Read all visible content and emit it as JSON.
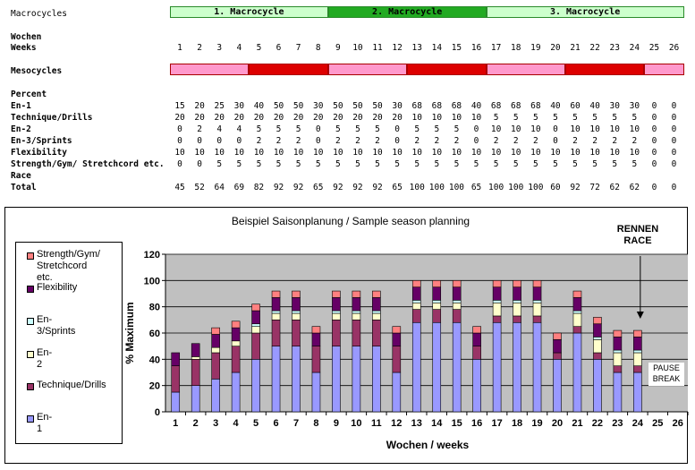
{
  "header_labels": {
    "macrocycles": "Macrocycles",
    "wochen": "Wochen",
    "weeks": "Weeks",
    "mesocycles": "Mesocycles",
    "percent": "Percent"
  },
  "macrocycles": [
    {
      "label": "1. Macrocycle",
      "start_week": 1,
      "end_week": 8,
      "color": "#ccffcc"
    },
    {
      "label": "2. Macrocycle",
      "start_week": 9,
      "end_week": 16,
      "color": "#22aa22"
    },
    {
      "label": "3. Macrocycle",
      "start_week": 17,
      "end_week": 26,
      "color": "#ccffcc"
    }
  ],
  "mesocycles": [
    {
      "start_week": 1,
      "end_week": 4,
      "color": "#ff99cc"
    },
    {
      "start_week": 5,
      "end_week": 8,
      "color": "#dd0000"
    },
    {
      "start_week": 9,
      "end_week": 12,
      "color": "#ff99cc"
    },
    {
      "start_week": 13,
      "end_week": 16,
      "color": "#dd0000"
    },
    {
      "start_week": 17,
      "end_week": 20,
      "color": "#ff99cc"
    },
    {
      "start_week": 21,
      "end_week": 24,
      "color": "#dd0000"
    },
    {
      "start_week": 25,
      "end_week": 26,
      "color": "#ff99cc"
    }
  ],
  "weeks": [
    "1",
    "2",
    "3",
    "4",
    "5",
    "6",
    "7",
    "8",
    "9",
    "10",
    "11",
    "12",
    "13",
    "14",
    "15",
    "16",
    "17",
    "18",
    "19",
    "20",
    "21",
    "22",
    "23",
    "24",
    "25",
    "26"
  ],
  "table_rows": [
    {
      "label": "En-1",
      "values": [
        "15",
        "20",
        "25",
        "30",
        "40",
        "50",
        "50",
        "30",
        "50",
        "50",
        "50",
        "30",
        "68",
        "68",
        "68",
        "40",
        "68",
        "68",
        "68",
        "40",
        "60",
        "40",
        "30",
        "30",
        "0",
        "0"
      ]
    },
    {
      "label": "Technique/Drills",
      "values": [
        "20",
        "20",
        "20",
        "20",
        "20",
        "20",
        "20",
        "20",
        "20",
        "20",
        "20",
        "20",
        "10",
        "10",
        "10",
        "10",
        "5",
        "5",
        "5",
        "5",
        "5",
        "5",
        "5",
        "5",
        "0",
        "0"
      ]
    },
    {
      "label": "En-2",
      "values": [
        "0",
        "2",
        "4",
        "4",
        "5",
        "5",
        "5",
        "0",
        "5",
        "5",
        "5",
        "0",
        "5",
        "5",
        "5",
        "0",
        "10",
        "10",
        "10",
        "0",
        "10",
        "10",
        "10",
        "10",
        "0",
        "0"
      ]
    },
    {
      "label": "En-3/Sprints",
      "values": [
        "0",
        "0",
        "0",
        "0",
        "2",
        "2",
        "2",
        "0",
        "2",
        "2",
        "2",
        "0",
        "2",
        "2",
        "2",
        "0",
        "2",
        "2",
        "2",
        "0",
        "2",
        "2",
        "2",
        "2",
        "0",
        "0"
      ]
    },
    {
      "label": "Flexibility",
      "values": [
        "10",
        "10",
        "10",
        "10",
        "10",
        "10",
        "10",
        "10",
        "10",
        "10",
        "10",
        "10",
        "10",
        "10",
        "10",
        "10",
        "10",
        "10",
        "10",
        "10",
        "10",
        "10",
        "10",
        "10",
        "0",
        "0"
      ]
    },
    {
      "label": "Strength/Gym/ Stretchcord etc.",
      "values": [
        "0",
        "0",
        "5",
        "5",
        "5",
        "5",
        "5",
        "5",
        "5",
        "5",
        "5",
        "5",
        "5",
        "5",
        "5",
        "5",
        "5",
        "5",
        "5",
        "5",
        "5",
        "5",
        "5",
        "5",
        "0",
        "0"
      ]
    },
    {
      "label": "Race",
      "values": []
    },
    {
      "label": "Total",
      "values": [
        "45",
        "52",
        "64",
        "69",
        "82",
        "92",
        "92",
        "65",
        "92",
        "92",
        "92",
        "65",
        "100",
        "100",
        "100",
        "65",
        "100",
        "100",
        "100",
        "60",
        "92",
        "72",
        "62",
        "62",
        "0",
        "0"
      ]
    }
  ],
  "chart_data": {
    "type": "bar",
    "stacked": true,
    "title": "Beispiel Saisonplanung / Sample season planning",
    "xlabel": "Wochen / weeks",
    "ylabel": "% Maximum",
    "ylim": [
      0,
      120
    ],
    "yticks": [
      "0",
      "20",
      "40",
      "60",
      "80",
      "100",
      "120"
    ],
    "grid": true,
    "legend_position": "left",
    "categories": [
      "1",
      "2",
      "3",
      "4",
      "5",
      "6",
      "7",
      "8",
      "9",
      "10",
      "11",
      "12",
      "13",
      "14",
      "15",
      "16",
      "17",
      "18",
      "19",
      "20",
      "21",
      "22",
      "23",
      "24",
      "25",
      "26"
    ],
    "series": [
      {
        "name": "En-1",
        "color": "#9999ff",
        "values": [
          15,
          20,
          25,
          30,
          40,
          50,
          50,
          30,
          50,
          50,
          50,
          30,
          68,
          68,
          68,
          40,
          68,
          68,
          68,
          40,
          60,
          40,
          30,
          30,
          0,
          0
        ]
      },
      {
        "name": "Technique/Drills",
        "color": "#993366",
        "values": [
          20,
          20,
          20,
          20,
          20,
          20,
          20,
          20,
          20,
          20,
          20,
          20,
          10,
          10,
          10,
          10,
          5,
          5,
          5,
          5,
          5,
          5,
          5,
          5,
          0,
          0
        ]
      },
      {
        "name": "En-2",
        "color": "#ffffcc",
        "values": [
          0,
          2,
          4,
          4,
          5,
          5,
          5,
          0,
          5,
          5,
          5,
          0,
          5,
          5,
          5,
          0,
          10,
          10,
          10,
          0,
          10,
          10,
          10,
          10,
          0,
          0
        ]
      },
      {
        "name": "En-3/Sprints",
        "color": "#ccffff",
        "values": [
          0,
          0,
          0,
          0,
          2,
          2,
          2,
          0,
          2,
          2,
          2,
          0,
          2,
          2,
          2,
          0,
          2,
          2,
          2,
          0,
          2,
          2,
          2,
          2,
          0,
          0
        ]
      },
      {
        "name": "Flexibility",
        "color": "#660066",
        "values": [
          10,
          10,
          10,
          10,
          10,
          10,
          10,
          10,
          10,
          10,
          10,
          10,
          10,
          10,
          10,
          10,
          10,
          10,
          10,
          10,
          10,
          10,
          10,
          10,
          0,
          0
        ]
      },
      {
        "name": "Strength/Gym/ Stretchcord etc.",
        "color": "#ff8080",
        "values": [
          0,
          0,
          5,
          5,
          5,
          5,
          5,
          5,
          5,
          5,
          5,
          5,
          5,
          5,
          5,
          5,
          5,
          5,
          5,
          5,
          5,
          5,
          5,
          5,
          0,
          0
        ]
      }
    ],
    "legend_entries": [
      {
        "name": "Strength/Gym/",
        "name2": "Stretchcord etc.",
        "color": "#ff8080"
      },
      {
        "name": "Flexibility",
        "name2": "",
        "color": "#660066"
      },
      {
        "name": "En-3/Sprints",
        "name2": "",
        "color": "#ccffff"
      },
      {
        "name": "En-2",
        "name2": "",
        "color": "#ffffcc"
      },
      {
        "name": "Technique/Drills",
        "name2": "",
        "color": "#993366"
      },
      {
        "name": "En-1",
        "name2": "",
        "color": "#9999ff"
      }
    ],
    "annotations": {
      "race_line1": "RENNEN",
      "race_line2": "RACE",
      "race_week": 24,
      "pause_line1": "PAUSE",
      "pause_line2": "BREAK"
    }
  }
}
